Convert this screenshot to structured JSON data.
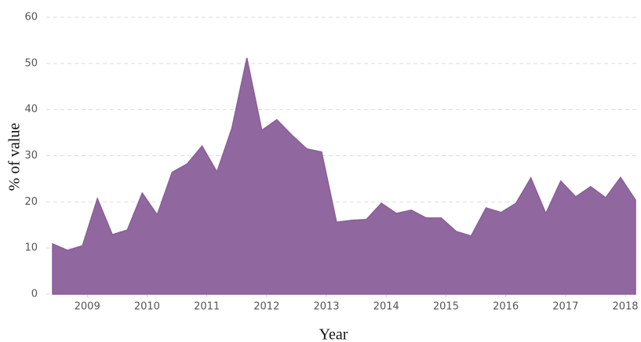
{
  "chart_data": {
    "type": "area",
    "x_label": "Year",
    "y_label": "% of value",
    "x": [
      2008.42,
      2008.67,
      2008.92,
      2009.17,
      2009.42,
      2009.67,
      2009.92,
      2010.17,
      2010.42,
      2010.67,
      2010.92,
      2011.17,
      2011.42,
      2011.67,
      2011.92,
      2012.17,
      2012.42,
      2012.67,
      2012.92,
      2013.17,
      2013.42,
      2013.67,
      2013.92,
      2014.17,
      2014.42,
      2014.67,
      2014.92,
      2015.17,
      2015.42,
      2015.67,
      2015.92,
      2016.17,
      2016.42,
      2016.67,
      2016.92,
      2017.17,
      2017.42,
      2017.67,
      2017.92,
      2018.17
    ],
    "values": [
      10.9,
      9.5,
      10.5,
      20.7,
      12.9,
      13.9,
      21.9,
      17.2,
      26.4,
      28.2,
      32.1,
      26.5,
      36,
      51.2,
      35.5,
      37.8,
      34.5,
      31.5,
      30.8,
      15.6,
      16,
      16.2,
      19.7,
      17.5,
      18.2,
      16.5,
      16.5,
      13.6,
      12.6,
      18.7,
      17.7,
      19.7,
      25.2,
      17.5,
      24.5,
      21.1,
      23.3,
      20.9,
      25.3,
      20.4
    ],
    "color": "#8a5f99",
    "xlim": [
      2008.42,
      2018.17
    ],
    "xticks": [
      2009,
      2010,
      2011,
      2012,
      2013,
      2014,
      2015,
      2016,
      2017,
      2018
    ],
    "ylim": [
      0,
      60
    ],
    "yticks": [
      0,
      10,
      20,
      30,
      40,
      50,
      60
    ],
    "grid": true
  }
}
